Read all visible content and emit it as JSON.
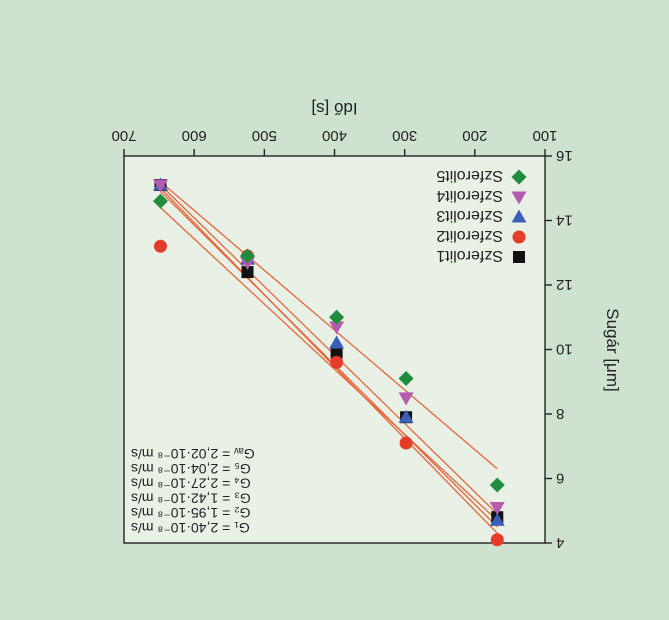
{
  "chart_data": {
    "type": "scatter",
    "orientation": "rotated-180",
    "xlabel": "Idő [s]",
    "ylabel": "Sugár [μm]",
    "xlim": [
      100,
      700
    ],
    "ylim": [
      4,
      16
    ],
    "x_ticks": [
      100,
      200,
      300,
      400,
      500,
      600,
      700
    ],
    "y_ticks": [
      4,
      6,
      8,
      10,
      12,
      14,
      16
    ],
    "legend_position": "top-right (rotated view)",
    "colors": {
      "background": "#cfe2cf",
      "plot_area": "#e9f1e6",
      "fit_line": "#e8653a"
    },
    "series": [
      {
        "name": "Szferolit1",
        "marker": "square",
        "color": "#111111",
        "x": [
          168,
          298,
          397,
          524,
          648
        ],
        "y": [
          4.8,
          7.9,
          9.9,
          12.4,
          15.1
        ]
      },
      {
        "name": "Szferolit2",
        "marker": "circle",
        "color": "#e53c2a",
        "x": [
          168,
          298,
          397,
          524,
          648
        ],
        "y": [
          4.1,
          7.1,
          9.6,
          12.9,
          13.2
        ]
      },
      {
        "name": "Szferolit3",
        "marker": "triangle-down",
        "color": "#3b5fb8",
        "x": [
          168,
          298,
          397,
          524,
          648
        ],
        "y": [
          4.7,
          7.9,
          10.2,
          12.8,
          15.1
        ]
      },
      {
        "name": "Szferolit4",
        "marker": "triangle-up",
        "color": "#b65ab0",
        "x": [
          168,
          298,
          397,
          524,
          648
        ],
        "y": [
          5.1,
          8.5,
          10.7,
          12.7,
          15.1
        ]
      },
      {
        "name": "Szferolit5",
        "marker": "diamond",
        "color": "#1f8c3e",
        "x": [
          168,
          298,
          397,
          524,
          648
        ],
        "y": [
          5.8,
          9.1,
          11.0,
          12.9,
          14.6
        ]
      }
    ],
    "fit_lines": [
      {
        "x": [
          168,
          648
        ],
        "y": [
          4.7,
          14.4
        ]
      },
      {
        "x": [
          168,
          648
        ],
        "y": [
          4.5,
          14.9
        ]
      },
      {
        "x": [
          168,
          648
        ],
        "y": [
          4.3,
          15.0
        ]
      },
      {
        "x": [
          168,
          648
        ],
        "y": [
          4.9,
          15.1
        ]
      },
      {
        "x": [
          168,
          648
        ],
        "y": [
          6.3,
          15.2
        ]
      }
    ],
    "annotations": [
      "G₁ = 2,40·10⁻⁸ m/s",
      "G₂ = 1,95·10⁻⁸ m/s",
      "G₃ = 1,42·10⁻⁸ m/s",
      "G₄ = 2,27·10⁻⁸ m/s",
      "G₅ = 2,04·10⁻⁸ m/s",
      "Gₐᵥ = 2,02·10⁻⁸ m/s"
    ]
  }
}
